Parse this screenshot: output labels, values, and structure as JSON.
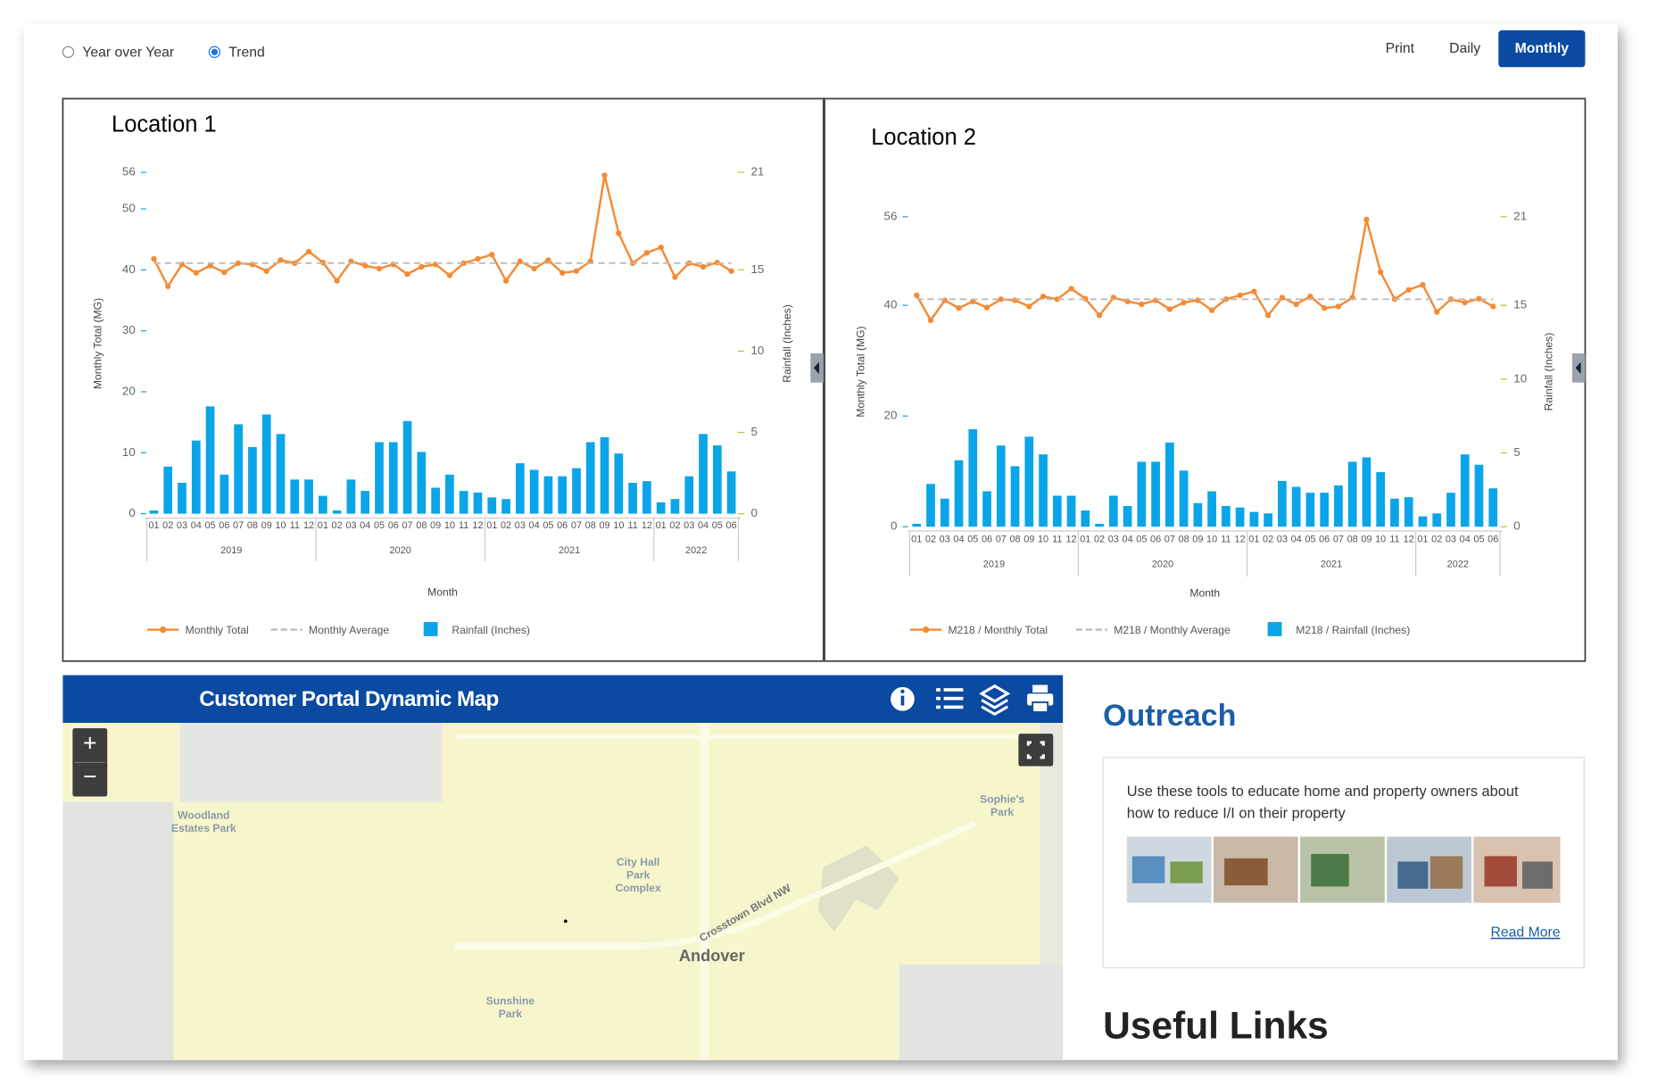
{
  "controls": {
    "view_options": [
      "Year over Year",
      "Trend"
    ],
    "selected_view": "Trend",
    "buttons": [
      "Print",
      "Daily",
      "Monthly"
    ],
    "active_button": "Monthly"
  },
  "chart_data": [
    {
      "type": "combo",
      "title": "Location 1",
      "xlabel": "Month",
      "ylabel": "Monthly Total (MG)",
      "y2label": "Rainfall (Inches)",
      "categories": [
        "01",
        "02",
        "03",
        "04",
        "05",
        "06",
        "07",
        "08",
        "09",
        "10",
        "11",
        "12",
        "01",
        "02",
        "03",
        "04",
        "05",
        "06",
        "07",
        "08",
        "09",
        "10",
        "11",
        "12",
        "01",
        "02",
        "03",
        "04",
        "05",
        "06",
        "07",
        "08",
        "09",
        "10",
        "11",
        "12",
        "01",
        "02",
        "03",
        "04",
        "05",
        "06"
      ],
      "years": [
        "2019",
        "2020",
        "2021",
        "2022"
      ],
      "ylim": [
        0,
        56
      ],
      "yticks": [
        0,
        10,
        20,
        30,
        40,
        50,
        56
      ],
      "y2lim": [
        0,
        21
      ],
      "y2ticks": [
        0,
        5,
        10,
        15,
        21
      ],
      "series": [
        {
          "name": "Monthly Total",
          "type": "line",
          "color": "#f58a33",
          "values": [
            41.8,
            37.3,
            40.9,
            39.5,
            40.7,
            39.6,
            41.1,
            40.9,
            39.8,
            41.6,
            41.1,
            43.0,
            41.2,
            38.2,
            41.4,
            40.7,
            40.2,
            40.9,
            39.3,
            40.5,
            40.9,
            39.1,
            41.1,
            41.8,
            42.5,
            38.2,
            41.4,
            40.2,
            41.6,
            39.5,
            39.8,
            41.4,
            55.5,
            46.0,
            41.1,
            42.8,
            43.7,
            38.8,
            41.1,
            40.5,
            41.2,
            39.8
          ]
        },
        {
          "name": "Monthly Average",
          "type": "line",
          "dashed": true,
          "color": "#bbbbbb",
          "values": [
            41.1,
            41.1,
            41.1,
            41.1,
            41.1,
            41.1,
            41.1,
            41.1,
            41.1,
            41.1,
            41.1,
            41.1,
            41.1,
            41.1,
            41.1,
            41.1,
            41.1,
            41.1,
            41.1,
            41.1,
            41.1,
            41.1,
            41.1,
            41.1,
            41.1,
            41.1,
            41.1,
            41.1,
            41.1,
            41.1,
            41.1,
            41.1,
            41.1,
            41.1,
            41.1,
            41.1,
            41.1,
            41.1,
            41.1,
            41.1,
            41.1,
            41.1
          ]
        },
        {
          "name": "Rainfall (Inches)",
          "type": "bar",
          "axis": "y2",
          "color": "#0aa5e8",
          "values": [
            0.2,
            2.9,
            1.9,
            4.5,
            6.6,
            2.4,
            5.5,
            4.1,
            6.1,
            4.9,
            2.1,
            2.1,
            1.1,
            0.2,
            2.1,
            1.4,
            4.4,
            4.4,
            5.7,
            3.8,
            1.6,
            2.4,
            1.4,
            1.3,
            1.0,
            0.9,
            3.1,
            2.7,
            2.3,
            2.3,
            2.8,
            4.4,
            4.7,
            3.7,
            1.9,
            2.0,
            0.7,
            0.9,
            2.3,
            4.9,
            4.2,
            2.6
          ]
        }
      ]
    },
    {
      "type": "combo",
      "title": "Location 2",
      "xlabel": "Month",
      "ylabel": "Monthly Total (MG)",
      "y2label": "Rainfall (Inches)",
      "categories": [
        "01",
        "02",
        "03",
        "04",
        "05",
        "06",
        "07",
        "08",
        "09",
        "10",
        "11",
        "12",
        "01",
        "02",
        "03",
        "04",
        "05",
        "06",
        "07",
        "08",
        "09",
        "10",
        "11",
        "12",
        "01",
        "02",
        "03",
        "04",
        "05",
        "06",
        "07",
        "08",
        "09",
        "10",
        "11",
        "12",
        "01",
        "02",
        "03",
        "04",
        "05",
        "06"
      ],
      "years": [
        "2019",
        "2020",
        "2021",
        "2022"
      ],
      "ylim": [
        0,
        56
      ],
      "yticks": [
        0,
        20,
        40,
        56
      ],
      "y2lim": [
        0,
        21
      ],
      "y2ticks": [
        0,
        5,
        10,
        15,
        21
      ],
      "series": [
        {
          "name": "M218 / Monthly Total",
          "type": "line",
          "color": "#f58a33",
          "values": [
            41.8,
            37.3,
            40.9,
            39.5,
            40.7,
            39.6,
            41.1,
            40.9,
            39.8,
            41.6,
            41.1,
            43.0,
            41.2,
            38.2,
            41.4,
            40.7,
            40.2,
            40.9,
            39.3,
            40.5,
            40.9,
            39.1,
            41.1,
            41.8,
            42.5,
            38.2,
            41.4,
            40.2,
            41.6,
            39.5,
            39.8,
            41.4,
            55.5,
            46.0,
            41.1,
            42.8,
            43.7,
            38.8,
            41.1,
            40.5,
            41.2,
            39.8
          ]
        },
        {
          "name": "M218 / Monthly Average",
          "type": "line",
          "dashed": true,
          "color": "#bbbbbb",
          "values": [
            41.1,
            41.1,
            41.1,
            41.1,
            41.1,
            41.1,
            41.1,
            41.1,
            41.1,
            41.1,
            41.1,
            41.1,
            41.1,
            41.1,
            41.1,
            41.1,
            41.1,
            41.1,
            41.1,
            41.1,
            41.1,
            41.1,
            41.1,
            41.1,
            41.1,
            41.1,
            41.1,
            41.1,
            41.1,
            41.1,
            41.1,
            41.1,
            41.1,
            41.1,
            41.1,
            41.1,
            41.1,
            41.1,
            41.1,
            41.1,
            41.1,
            41.1
          ]
        },
        {
          "name": "M218 / Rainfall (Inches)",
          "type": "bar",
          "axis": "y2",
          "color": "#0aa5e8",
          "values": [
            0.2,
            2.9,
            1.9,
            4.5,
            6.6,
            2.4,
            5.5,
            4.1,
            6.1,
            4.9,
            2.1,
            2.1,
            1.1,
            0.2,
            2.1,
            1.4,
            4.4,
            4.4,
            5.7,
            3.8,
            1.6,
            2.4,
            1.4,
            1.3,
            1.0,
            0.9,
            3.1,
            2.7,
            2.3,
            2.3,
            2.8,
            4.4,
            4.7,
            3.7,
            1.9,
            2.0,
            0.7,
            0.9,
            2.3,
            4.9,
            4.2,
            2.6
          ]
        }
      ]
    }
  ],
  "map": {
    "title": "Customer Portal Dynamic Map",
    "zoom_in": "+",
    "zoom_out": "−",
    "labels": [
      {
        "lines": [
          "Woodland",
          "Estates Park"
        ]
      },
      {
        "lines": [
          "City Hall",
          "Park",
          "Complex"
        ]
      },
      {
        "lines": [
          "Sophie's",
          "Park"
        ]
      },
      {
        "lines": [
          "Crosstown Blvd NW"
        ]
      },
      {
        "lines": [
          "Andover"
        ]
      },
      {
        "lines": [
          "Sunshine",
          "Park"
        ]
      }
    ]
  },
  "outreach": {
    "title": "Outreach",
    "description_lines": [
      "Use these tools to educate home and property owners about",
      "how to reduce I/I on their property"
    ],
    "link": "Read More"
  },
  "useful_links": {
    "title": "Useful Links"
  }
}
